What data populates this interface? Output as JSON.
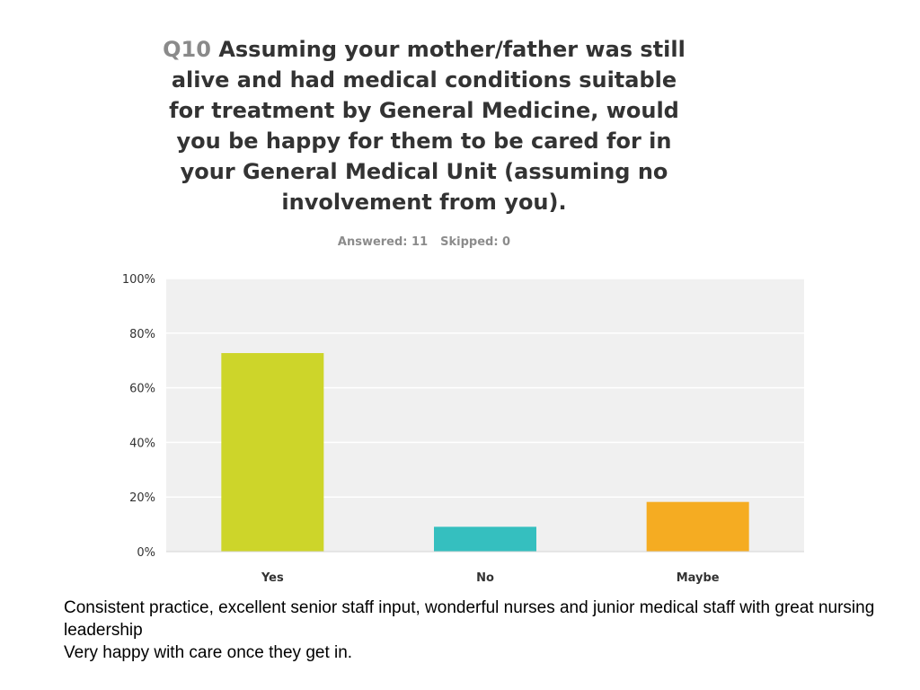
{
  "question": {
    "number": "Q10",
    "text": "Assuming your mother/father was still alive and had medical conditions suitable for treatment by General Medicine, would you be happy for them to be cared for in your General Medical Unit (assuming no involvement from you)."
  },
  "stats": {
    "answered": "Answered: 11",
    "skipped": "Skipped: 0"
  },
  "chart_data": {
    "type": "bar",
    "categories": [
      "Yes",
      "No",
      "Maybe"
    ],
    "values": [
      72.7,
      9.1,
      18.2
    ],
    "colors": [
      "#cdd52a",
      "#35bfbf",
      "#f5ac22"
    ],
    "ylim": [
      0,
      100
    ],
    "yticks": [
      0,
      20,
      40,
      60,
      80,
      100
    ],
    "ytick_labels": [
      "0%",
      "20%",
      "40%",
      "60%",
      "80%",
      "100%"
    ],
    "grid": true,
    "plot_background": "#f0f0f0",
    "gridline_color": "#ffffff"
  },
  "comments": [
    "Consistent practice, excellent senior staff input, wonderful nurses and junior medical staff with great nursing leadership",
    "Very happy with care once they get in."
  ]
}
